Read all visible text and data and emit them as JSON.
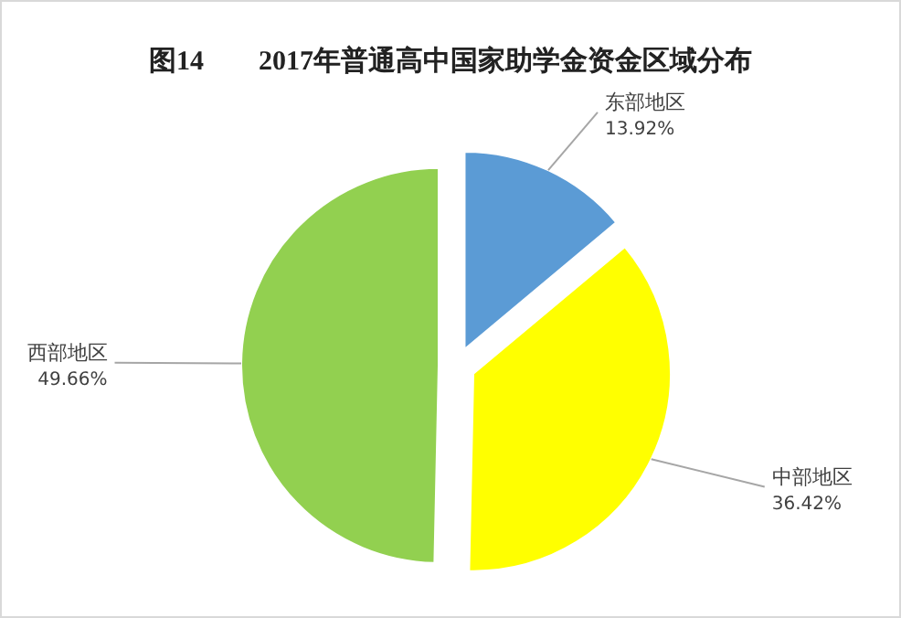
{
  "chart_data": {
    "type": "pie",
    "title": "图14        2017年普通高中国家助学金资金区域分布",
    "categories": [
      "东部地区",
      "中部地区",
      "西部地区"
    ],
    "values": [
      13.92,
      36.42,
      49.66
    ],
    "value_labels": [
      "13.92%",
      "36.42%",
      "49.66%"
    ],
    "colors": [
      "#5b9bd5",
      "#ffff00",
      "#92d050"
    ]
  }
}
